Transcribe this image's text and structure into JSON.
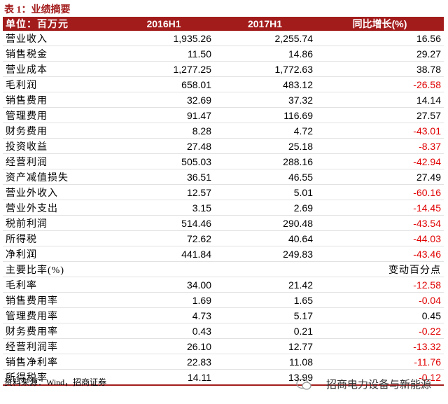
{
  "title": "表 1：业绩摘要",
  "table": {
    "header": [
      "单位：百万元",
      "2016H1",
      "2017H1",
      "同比增长(%)"
    ],
    "rows": [
      [
        "营业收入",
        "1,935.26",
        "2,255.74",
        "16.56"
      ],
      [
        "销售税金",
        "11.50",
        "14.86",
        "29.27"
      ],
      [
        "营业成本",
        "1,277.25",
        "1,772.63",
        "38.78"
      ],
      [
        "毛利润",
        "658.01",
        "483.12",
        "-26.58"
      ],
      [
        "销售费用",
        "32.69",
        "37.32",
        "14.14"
      ],
      [
        "管理费用",
        "91.47",
        "116.69",
        "27.57"
      ],
      [
        "财务费用",
        "8.28",
        "4.72",
        "-43.01"
      ],
      [
        "投资收益",
        "27.48",
        "25.18",
        "-8.37"
      ],
      [
        "经营利润",
        "505.03",
        "288.16",
        "-42.94"
      ],
      [
        "资产减值损失",
        "36.51",
        "46.55",
        "27.49"
      ],
      [
        "营业外收入",
        "12.57",
        "5.01",
        "-60.16"
      ],
      [
        "营业外支出",
        "3.15",
        "2.69",
        "-14.45"
      ],
      [
        "税前利润",
        "514.46",
        "290.48",
        "-43.54"
      ],
      [
        "所得税",
        "72.62",
        "40.64",
        "-44.03"
      ],
      [
        "净利润",
        "441.84",
        "249.83",
        "-43.46"
      ]
    ],
    "ratio_section": {
      "label": "主要比率(%)",
      "unit": "变动百分点"
    },
    "ratio_rows": [
      [
        "毛利率",
        "34.00",
        "21.42",
        "-12.58"
      ],
      [
        "销售费用率",
        "1.69",
        "1.65",
        "-0.04"
      ],
      [
        "管理费用率",
        "4.73",
        "5.17",
        "0.45"
      ],
      [
        "财务费用率",
        "0.43",
        "0.21",
        "-0.22"
      ],
      [
        "经营利润率",
        "26.10",
        "12.77",
        "-13.32"
      ],
      [
        "销售净利率",
        "22.83",
        "11.08",
        "-11.76"
      ],
      [
        "所得税率",
        "14.11",
        "13.99",
        "-0.12"
      ]
    ]
  },
  "source": "资料来源：Wind，招商证券",
  "watermark": "招商电力设备与新能源"
}
